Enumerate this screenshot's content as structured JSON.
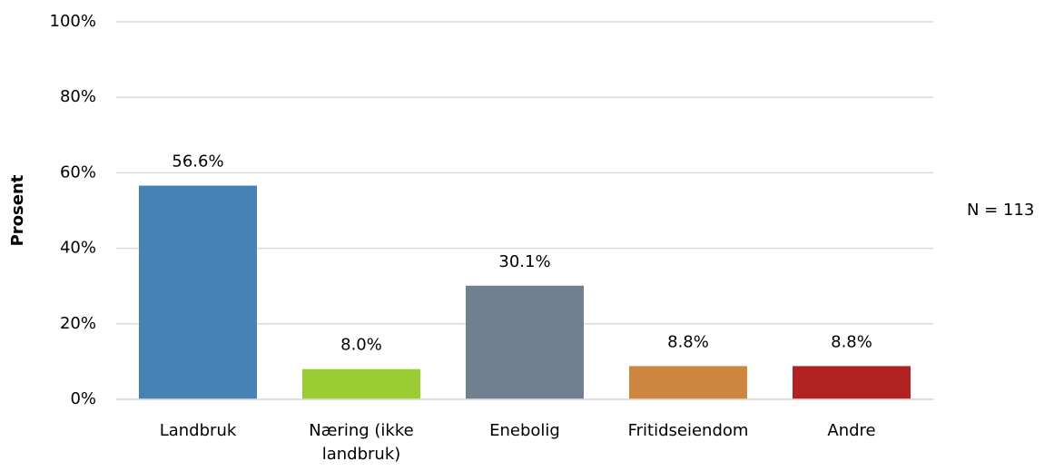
{
  "chart_data": {
    "type": "bar",
    "y_label": "Prosent",
    "annotation": "N = 113",
    "categories": [
      "Landbruk",
      "Næring (ikke landbruk)",
      "Enebolig",
      "Fritidseiendom",
      "Andre"
    ],
    "values": [
      56.6,
      8.0,
      30.1,
      8.8,
      8.8
    ],
    "value_labels": [
      "56.6%",
      "8.0%",
      "30.1%",
      "8.8%",
      "8.8%"
    ],
    "colors": [
      "#4682b4",
      "#9acd32",
      "#708090",
      "#cd853f",
      "#b22222"
    ],
    "ylim": [
      0,
      100
    ],
    "yticks": [
      {
        "value": 0,
        "label": "0%"
      },
      {
        "value": 20,
        "label": "20%"
      },
      {
        "value": 40,
        "label": "40%"
      },
      {
        "value": 60,
        "label": "60%"
      },
      {
        "value": 80,
        "label": "80%"
      },
      {
        "value": 100,
        "label": "100%"
      }
    ],
    "grid": true
  }
}
